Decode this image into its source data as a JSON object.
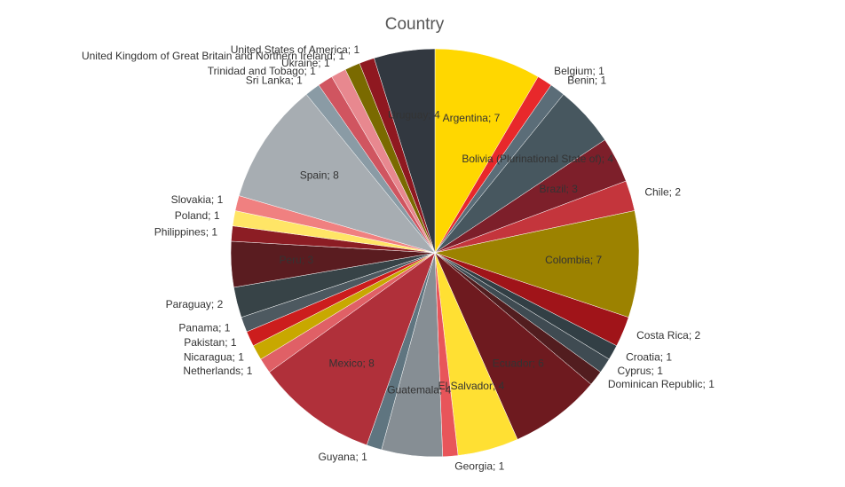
{
  "chart_data": {
    "type": "pie",
    "title": "Country",
    "values": [
      7,
      1,
      1,
      4,
      3,
      2,
      7,
      2,
      1,
      1,
      1,
      6,
      4,
      1,
      4,
      1,
      8,
      1,
      1,
      1,
      1,
      2,
      3,
      1,
      1,
      1,
      8,
      1,
      1,
      1,
      1,
      1,
      4
    ],
    "value_labels": [
      "Argentina; 7",
      "Belgium; 1",
      "Benin; 1",
      "Bolivia (Plurinational State of); 4",
      "Brazil; 3",
      "Chile; 2",
      "Colombia; 7",
      "Costa Rica; 2",
      "Croatia; 1",
      "Cyprus; 1",
      "Dominican Republic; 1",
      "Ecuador; 6",
      "El Salvador; 4",
      "Georgia; 1",
      "Guatemala; 4",
      "Guyana; 1",
      "Mexico; 8",
      "Netherlands; 1",
      "Nicaragua; 1",
      "Pakistan; 1",
      "Panama; 1",
      "Paraguay; 2",
      "Peru; 3",
      "Philippines; 1",
      "Poland; 1",
      "Slovakia; 1",
      "Spain; 8",
      "Sri Lanka; 1",
      "Trinidad and Tobago; 1",
      "Ukraine; 1",
      "United Kingdom of Great Britain and Northern Ireland; 1",
      "United States of America; 1",
      "Uruguay; 4"
    ],
    "colors": [
      "#ffd700",
      "#e8282b",
      "#5b6d78",
      "#47575f",
      "#7d1f2a",
      "#c4353c",
      "#9c8200",
      "#a01419",
      "#323f45",
      "#3f4b52",
      "#521d1f",
      "#6e1a1f",
      "#ffe033",
      "#e8555a",
      "#868e94",
      "#5f7580",
      "#b0303a",
      "#e06066",
      "#c8a800",
      "#cc1d1d",
      "#4d5960",
      "#374347",
      "#5a1c20",
      "#8c1d24",
      "#ffe566",
      "#f08080",
      "#a7adb2",
      "#8a9ba5",
      "#d05560",
      "#e8888f",
      "#7a6a00",
      "#8f1820",
      "#323840"
    ]
  }
}
